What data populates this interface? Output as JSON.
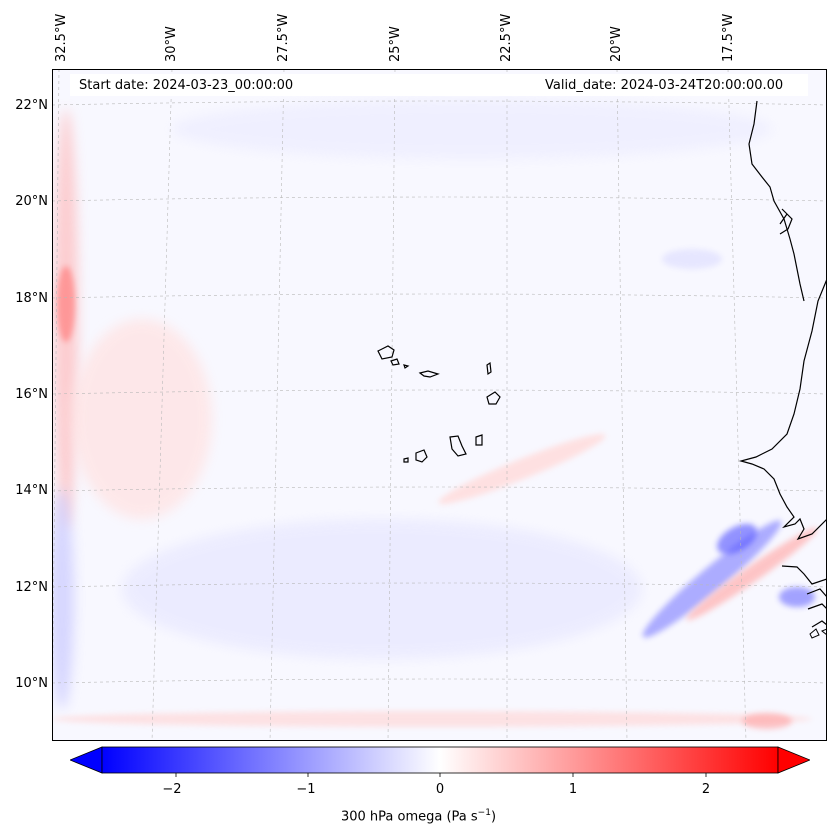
{
  "header": {
    "start_date": "Start date: 2024-03-23_00:00:00",
    "valid_date": "Valid_date: 2024-03-24T20:00:00.00"
  },
  "map": {
    "lon_labels": [
      "32.5°W",
      "30°W",
      "27.5°W",
      "25°W",
      "22.5°W",
      "20°W",
      "17.5°W"
    ],
    "lat_labels": [
      "22°N",
      "20°N",
      "18°N",
      "16°N",
      "14°N",
      "12°N",
      "10°N"
    ],
    "extent": {
      "lon_min": -33.2,
      "lon_max": -15.5,
      "lat_min": 8.9,
      "lat_max": 22.7
    },
    "field": "300 hPa omega",
    "colors": {
      "negative": "#0000ff",
      "positive": "#ff0000",
      "zero": "#ffffff",
      "coast": "#000000",
      "grid": "#b0b0b0"
    }
  },
  "colorbar": {
    "ticks": [
      "−2",
      "−1",
      "0",
      "1",
      "2"
    ],
    "tick_values": [
      -2,
      -1,
      0,
      1,
      2
    ],
    "range": [
      -2.5,
      2.5
    ],
    "label": "300 hPa omega (Pa s",
    "label_sup": "−1",
    "label_close": ")"
  }
}
